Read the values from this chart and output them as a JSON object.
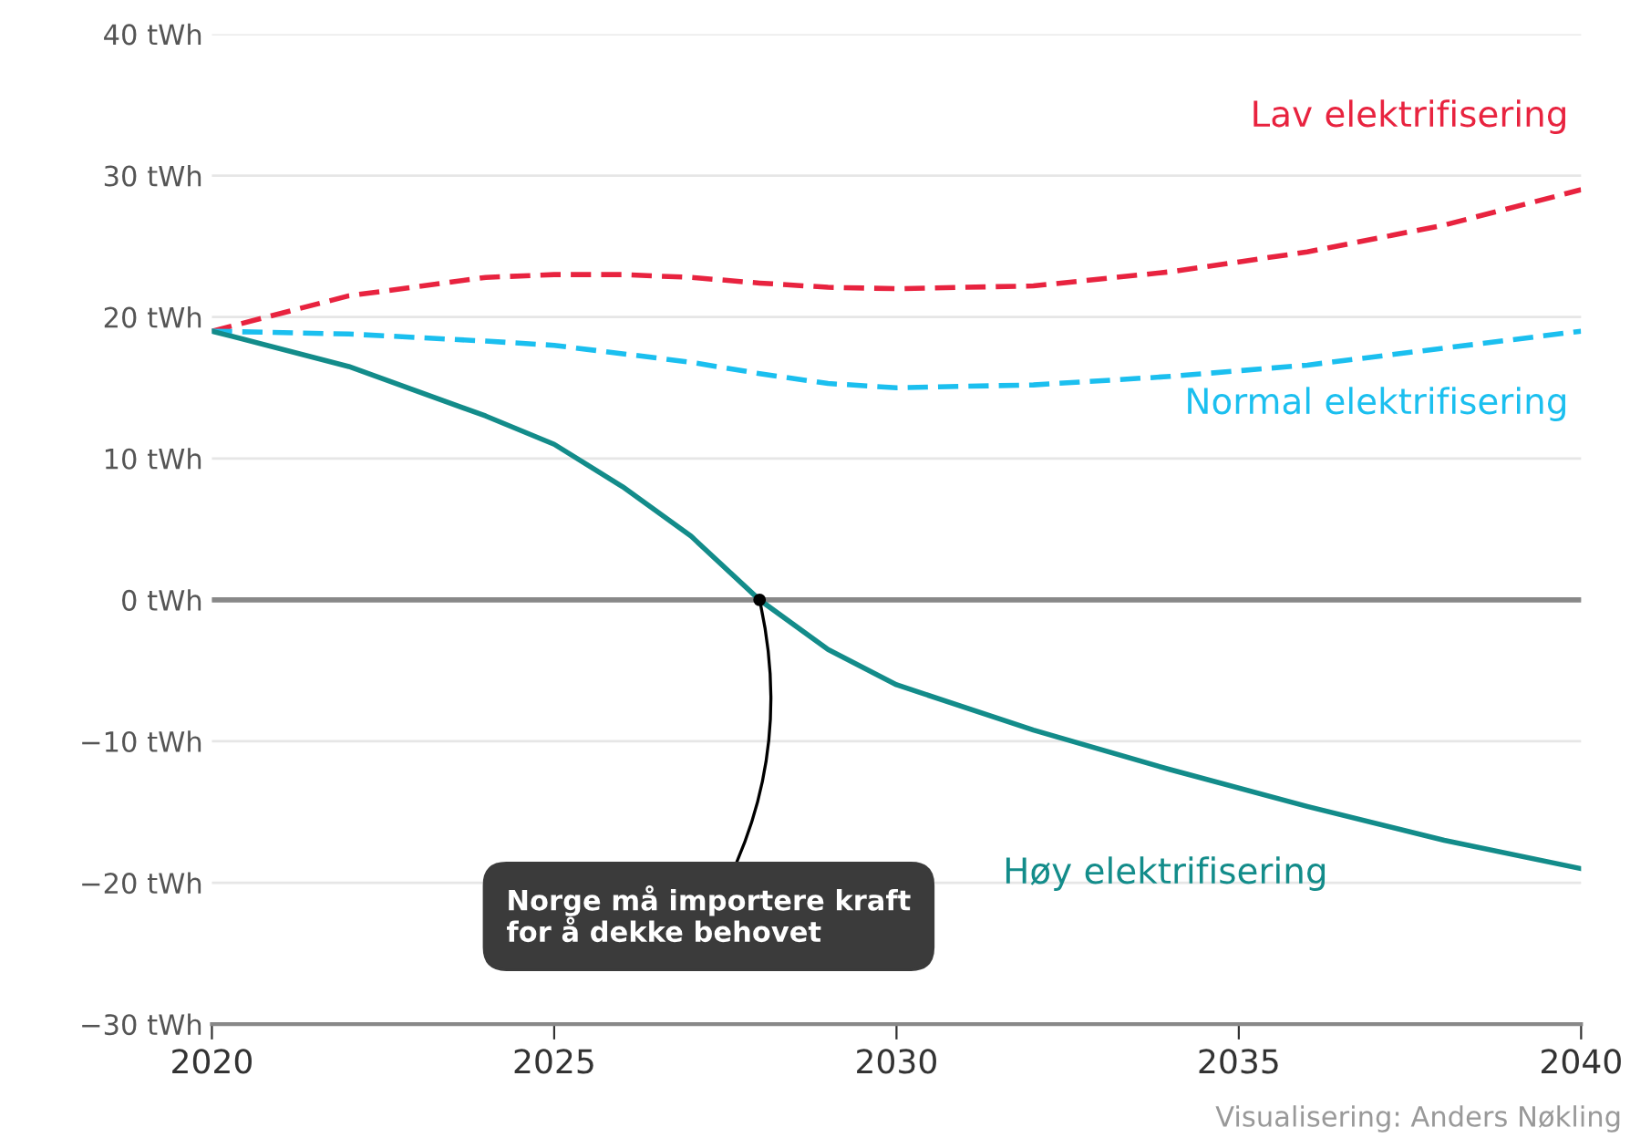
{
  "chart_data": {
    "type": "line",
    "x": [
      2020,
      2022,
      2024,
      2025,
      2026,
      2027,
      2028,
      2029,
      2030,
      2032,
      2034,
      2036,
      2038,
      2040
    ],
    "series": [
      {
        "name": "Lav elektrifisering",
        "color": "#e8233f",
        "line_style": "dashed",
        "values": [
          19,
          21.5,
          22.8,
          23,
          23,
          22.8,
          22.4,
          22.1,
          22,
          22.2,
          23.2,
          24.6,
          26.5,
          29
        ]
      },
      {
        "name": "Normal elektrifisering",
        "color": "#1bbfef",
        "line_style": "dashed",
        "values": [
          19,
          18.8,
          18.3,
          18,
          17.4,
          16.8,
          16,
          15.3,
          15,
          15.2,
          15.8,
          16.6,
          17.8,
          19
        ]
      },
      {
        "name": "Høy elektrifisering",
        "color": "#138c8a",
        "line_style": "solid",
        "values": [
          19,
          16.5,
          13,
          11,
          8,
          4.5,
          0,
          -3.5,
          -6,
          -9.2,
          -12,
          -14.6,
          -17,
          -19
        ]
      }
    ],
    "xlim": [
      2020,
      2040
    ],
    "xticks": [
      2020,
      2025,
      2030,
      2035,
      2040
    ],
    "ylim": [
      -30,
      40
    ],
    "yticks": [
      {
        "value": -30,
        "label": "−30 tWh"
      },
      {
        "value": -20,
        "label": "−20 tWh"
      },
      {
        "value": -10,
        "label": "−10 tWh"
      },
      {
        "value": 0,
        "label": "0 tWh"
      },
      {
        "value": 10,
        "label": "10 tWh"
      },
      {
        "value": 20,
        "label": "20 tWh"
      },
      {
        "value": 30,
        "label": "30 tWh"
      },
      {
        "value": 40,
        "label": "40 tWh"
      }
    ],
    "grid": "y",
    "marker": "none",
    "ref_lines": [
      {
        "axis": "y",
        "value": 0,
        "label": null,
        "color": "#888888"
      }
    ],
    "annotations": [
      {
        "text": "Norge må importere kraft\nfor å dekke behovet",
        "x": 2028,
        "y": 0
      },
      "Visualisering: Anders Nøkling"
    ]
  }
}
